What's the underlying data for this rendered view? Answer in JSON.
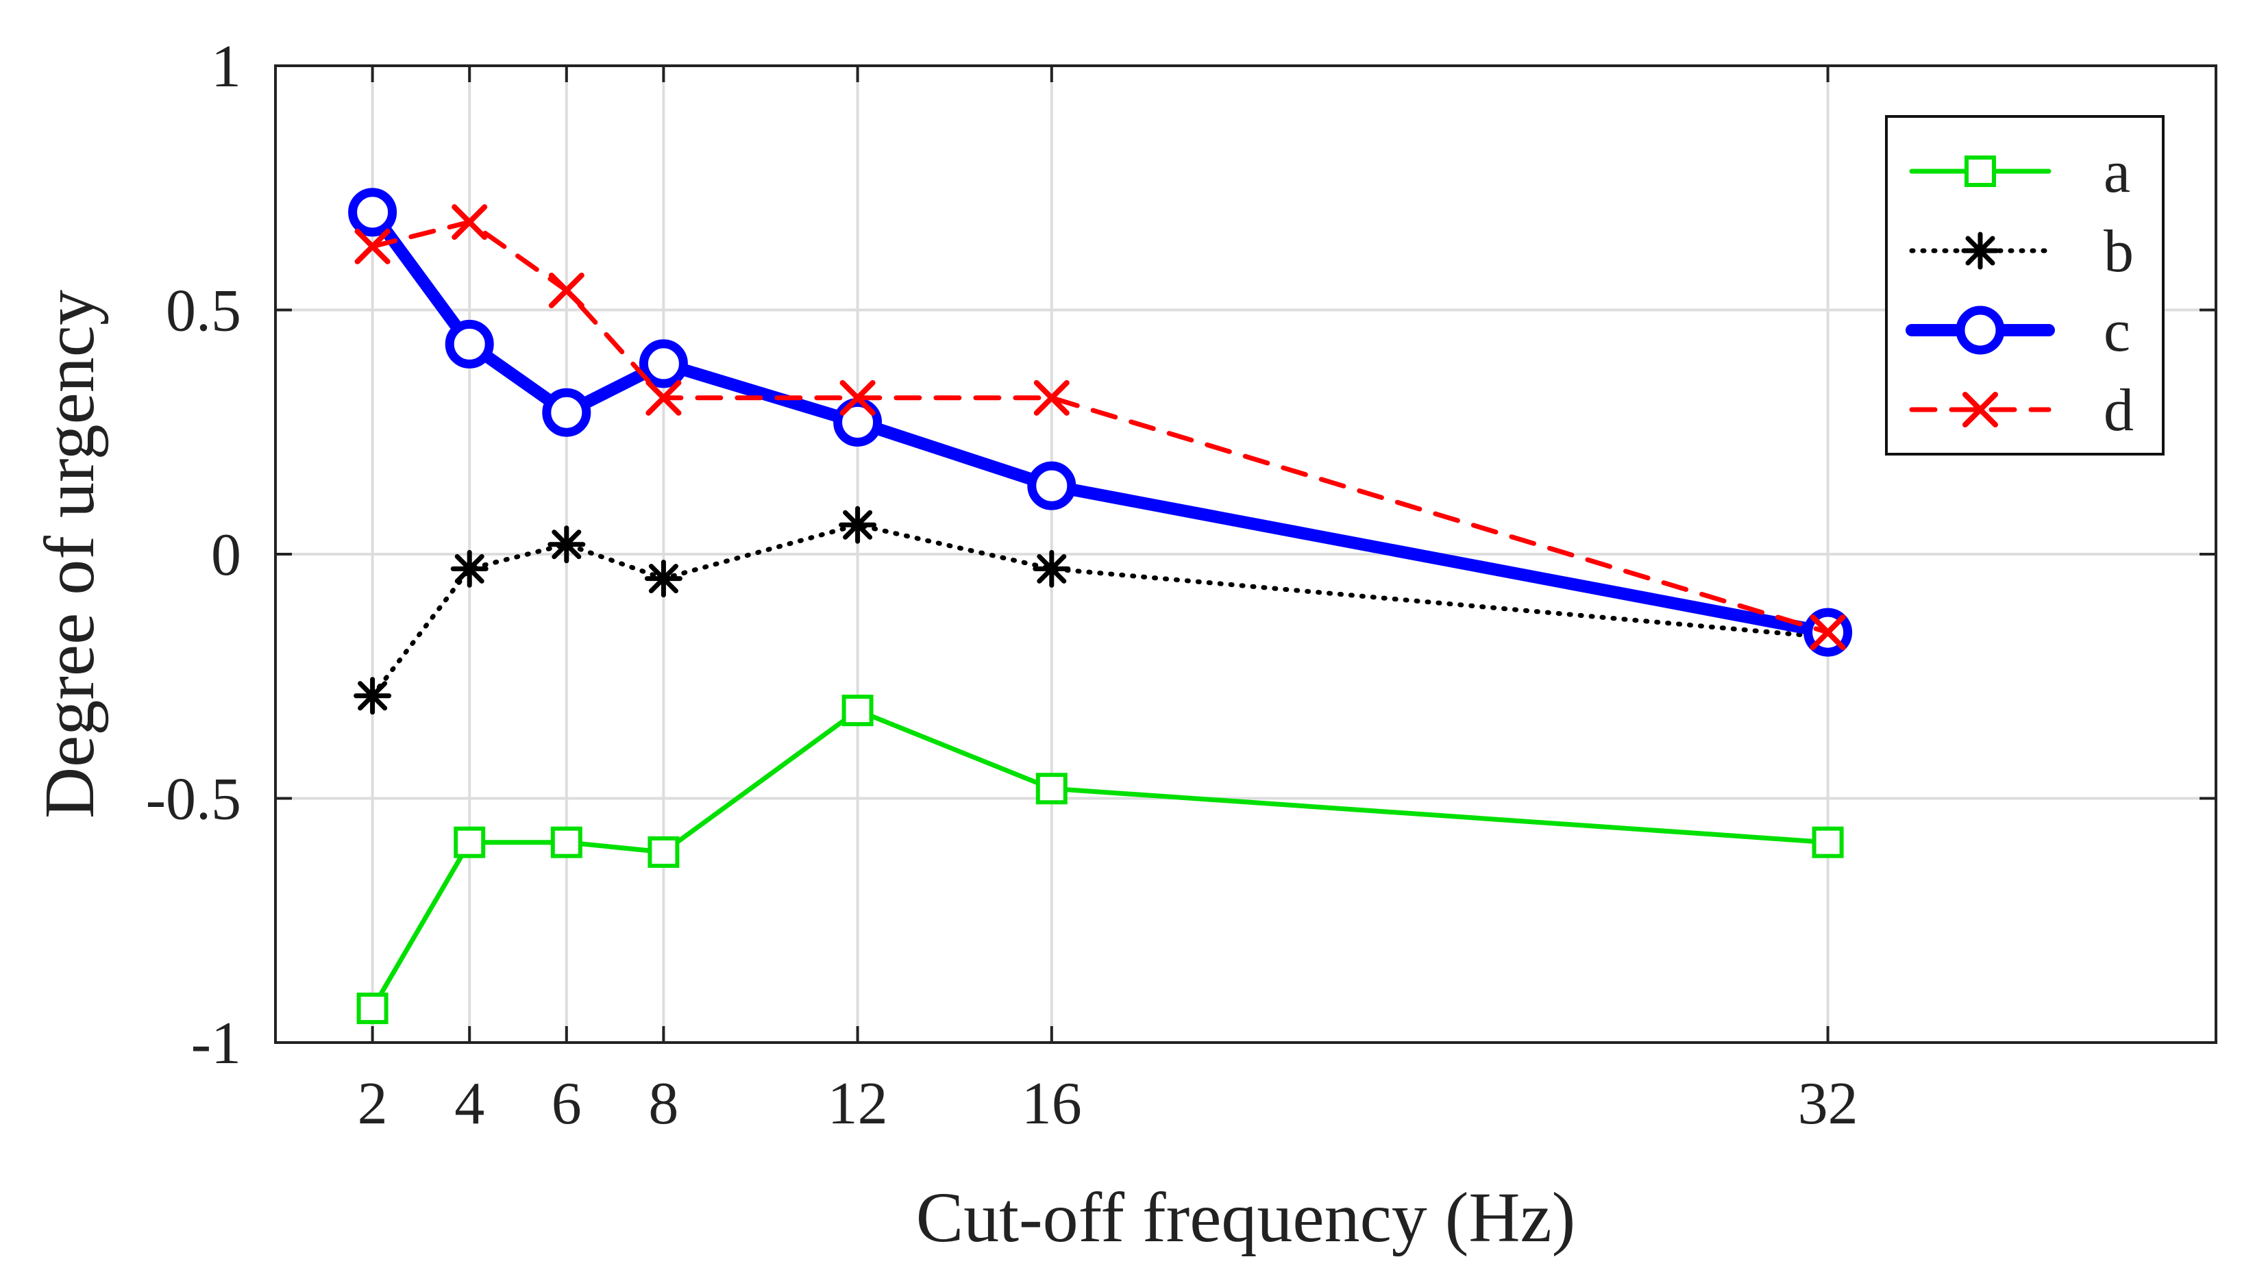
{
  "chart_data": {
    "type": "line",
    "title": "",
    "xlabel": "Cut-off frequency (Hz)",
    "ylabel": "Degree of urgency",
    "x": [
      2,
      4,
      6,
      8,
      12,
      16,
      32
    ],
    "xlim": [
      0,
      40
    ],
    "ylim": [
      -1,
      1
    ],
    "x_ticks": [
      2,
      4,
      6,
      8,
      12,
      16,
      32
    ],
    "x_tick_labels": [
      "2",
      "4",
      "6",
      "8",
      "12",
      "16",
      "32"
    ],
    "y_ticks": [
      -1,
      -0.5,
      0,
      0.5,
      1
    ],
    "y_tick_labels": [
      "-1",
      "-0.5",
      "0",
      "0.5",
      "1"
    ],
    "grid": true,
    "legend_position": "top-right",
    "series": [
      {
        "name": "a",
        "values": [
          -0.93,
          -0.59,
          -0.59,
          -0.61,
          -0.32,
          -0.48,
          -0.59
        ],
        "color": "#00e000",
        "marker": "square",
        "line_style": "solid",
        "line_weight": "normal"
      },
      {
        "name": "b",
        "values": [
          -0.29,
          -0.03,
          0.02,
          -0.05,
          0.06,
          -0.03,
          -0.17
        ],
        "color": "#000000",
        "marker": "asterisk",
        "line_style": "dotted",
        "line_weight": "normal"
      },
      {
        "name": "c",
        "values": [
          0.7,
          0.43,
          0.29,
          0.39,
          0.27,
          0.14,
          -0.16
        ],
        "color": "#0000ff",
        "marker": "circle",
        "line_style": "solid",
        "line_weight": "bold"
      },
      {
        "name": "d",
        "values": [
          0.63,
          0.68,
          0.54,
          0.32,
          0.32,
          0.32,
          -0.16
        ],
        "color": "#ff0000",
        "marker": "x",
        "line_style": "dashed",
        "line_weight": "normal"
      }
    ]
  }
}
